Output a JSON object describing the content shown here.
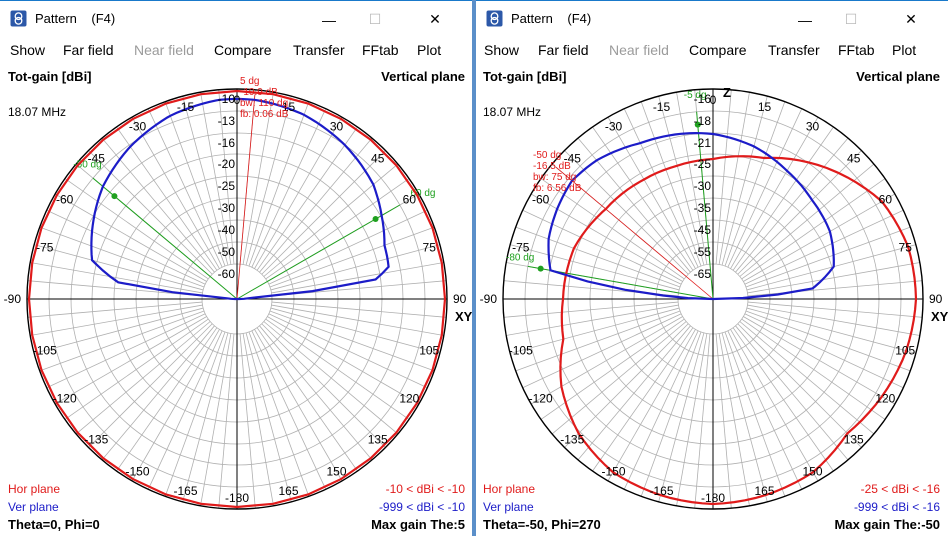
{
  "colors": {
    "hor_plane": "#e01b1b",
    "ver_plane": "#1c1cc8",
    "cursor": "#1fa01f",
    "marker": "#e01b1b",
    "grid": "#b0b0b0",
    "axis": "#000000"
  },
  "windows": [
    {
      "id": "left",
      "title": "Pattern    (F4)",
      "icon": "antenna-pattern-icon",
      "controls": {
        "minimize": "—",
        "maximize": "☐",
        "close": "✕"
      },
      "menu": [
        {
          "label": "Show",
          "enabled": true
        },
        {
          "label": "Far field",
          "enabled": true
        },
        {
          "label": "Near field",
          "enabled": false
        },
        {
          "label": "Compare",
          "enabled": true
        },
        {
          "label": "Transfer",
          "enabled": true
        },
        {
          "label": "FFtab",
          "enabled": true
        },
        {
          "label": "Plot",
          "enabled": true
        }
      ],
      "plot": {
        "quantity": "Tot-gain [dBi]",
        "plane": "Vertical plane",
        "frequency": "18.07 MHz",
        "axis_z": "",
        "axis_xy": "XY",
        "angle_labels": [
          "0",
          "15",
          "30",
          "45",
          "60",
          "75",
          "90",
          "105",
          "120",
          "135",
          "150",
          "165",
          "-180",
          "-165",
          "-150",
          "-135",
          "-120",
          "-105",
          "-90",
          "-75",
          "-60",
          "-45",
          "-30",
          "-15"
        ],
        "ring_labels": [
          "-10",
          "-13",
          "-16",
          "-20",
          "-25",
          "-30",
          "-40",
          "-50",
          "-60"
        ],
        "marker_text": [
          "5 dg",
          "-10.9 dB",
          "bw: 110 dg",
          "fb: 0.06 dB"
        ],
        "marker_angle": 5,
        "cursor_labels": [
          {
            "text": "-50 dg",
            "angle": -50
          },
          {
            "text": "60 dg",
            "angle": 60
          }
        ],
        "legend_hor": "Hor plane",
        "legend_ver": "Ver plane",
        "range_hor": "-10 < dBi < -10",
        "range_ver": "-999 < dBi < -10",
        "footer_left": "Theta=0, Phi=0",
        "footer_right": "Max gain The:5"
      }
    },
    {
      "id": "right",
      "title": "Pattern    (F4)",
      "icon": "antenna-pattern-icon",
      "controls": {
        "minimize": "—",
        "maximize": "☐",
        "close": "✕"
      },
      "menu": [
        {
          "label": "Show",
          "enabled": true
        },
        {
          "label": "Far field",
          "enabled": true
        },
        {
          "label": "Near field",
          "enabled": false
        },
        {
          "label": "Compare",
          "enabled": true
        },
        {
          "label": "Transfer",
          "enabled": true
        },
        {
          "label": "FFtab",
          "enabled": true
        },
        {
          "label": "Plot",
          "enabled": true
        }
      ],
      "plot": {
        "quantity": "Tot-gain [dBi]",
        "plane": "Vertical plane",
        "frequency": "18.07 MHz",
        "axis_z": "Z",
        "axis_xy": "XY",
        "angle_labels": [
          "0",
          "15",
          "30",
          "45",
          "60",
          "75",
          "90",
          "105",
          "120",
          "135",
          "150",
          "165",
          "-180",
          "-165",
          "-150",
          "-135",
          "-120",
          "-105",
          "-90",
          "-75",
          "-60",
          "-45",
          "-30",
          "-15"
        ],
        "ring_labels": [
          "-16",
          "-18",
          "-21",
          "-25",
          "-30",
          "-35",
          "-45",
          "-55",
          "-65"
        ],
        "marker_text": [
          "-50 dg",
          "-16.5 dB",
          "bw: 75 dg",
          "fb: 6.56 dB"
        ],
        "marker_angle": -50,
        "cursor_labels": [
          {
            "text": "-5 dg",
            "angle": -5
          },
          {
            "text": "-80 dg",
            "angle": -80
          }
        ],
        "legend_hor": "Hor plane",
        "legend_ver": "Ver plane",
        "range_hor": "-25 < dBi < -16",
        "range_ver": "-999 < dBi < -16",
        "footer_left": "Theta=-50, Phi=270",
        "footer_right": "Max gain The:-50"
      }
    }
  ]
}
